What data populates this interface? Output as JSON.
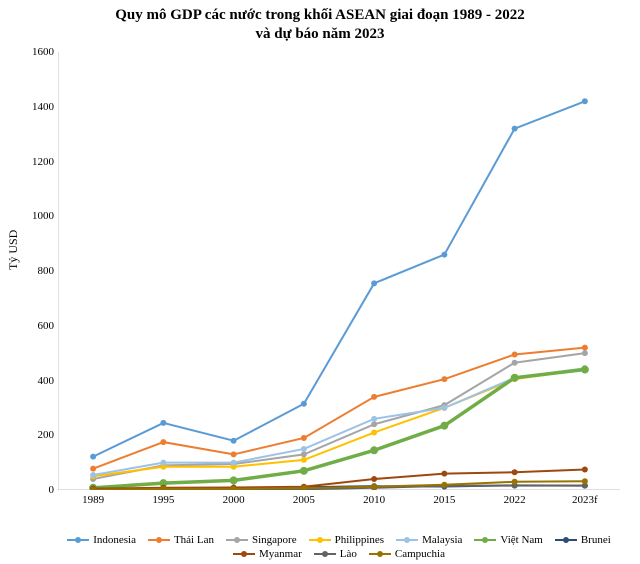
{
  "chart": {
    "type": "line",
    "title_line1": "Quy mô GDP các nước trong khối ASEAN giai đoạn 1989 - 2022",
    "title_line2": "và dự báo năm 2023",
    "title_fontsize": 15,
    "ylabel": "Tỷ USD",
    "label_fontsize": 12,
    "background_color": "#ffffff",
    "axis_color": "#bfbfbf",
    "categories": [
      "1989",
      "1995",
      "2000",
      "2005",
      "2010",
      "2015",
      "2022",
      "2023f"
    ],
    "ylim": [
      0,
      1600
    ],
    "ytick_step": 200,
    "yticks": [
      0,
      200,
      400,
      600,
      800,
      1000,
      1200,
      1400,
      1600
    ],
    "series": [
      {
        "name": "Indonesia",
        "color": "#5b9bd5",
        "width": 2,
        "values": [
          122,
          245,
          180,
          315,
          755,
          860,
          1320,
          1420
        ]
      },
      {
        "name": "Thái Lan",
        "color": "#ed7d31",
        "width": 2,
        "values": [
          78,
          175,
          130,
          190,
          340,
          405,
          495,
          520
        ]
      },
      {
        "name": "Singapore",
        "color": "#a5a5a5",
        "width": 2,
        "values": [
          40,
          90,
          95,
          130,
          240,
          310,
          465,
          500
        ]
      },
      {
        "name": "Philippines",
        "color": "#ffc000",
        "width": 2,
        "values": [
          50,
          85,
          85,
          110,
          210,
          300,
          405,
          440
        ]
      },
      {
        "name": "Malaysia",
        "color": "#9cc2e5",
        "width": 2,
        "values": [
          55,
          100,
          100,
          150,
          260,
          300,
          410,
          445
        ]
      },
      {
        "name": "Việt Nam",
        "color": "#70ad47",
        "width": 3.5,
        "values": [
          8,
          25,
          35,
          70,
          145,
          235,
          410,
          440
        ]
      },
      {
        "name": "Brunei",
        "color": "#2e4d75",
        "width": 2,
        "values": [
          5,
          6,
          7,
          10,
          14,
          13,
          17,
          16
        ]
      },
      {
        "name": "Myanmar",
        "color": "#9e480e",
        "width": 2,
        "values": [
          5,
          8,
          9,
          12,
          40,
          60,
          65,
          75
        ]
      },
      {
        "name": "Lào",
        "color": "#636363",
        "width": 2,
        "values": [
          1,
          2,
          2,
          3,
          8,
          15,
          16,
          16
        ]
      },
      {
        "name": "Campuchia",
        "color": "#997300",
        "width": 2,
        "values": [
          1,
          4,
          4,
          7,
          12,
          19,
          30,
          32
        ]
      }
    ]
  }
}
